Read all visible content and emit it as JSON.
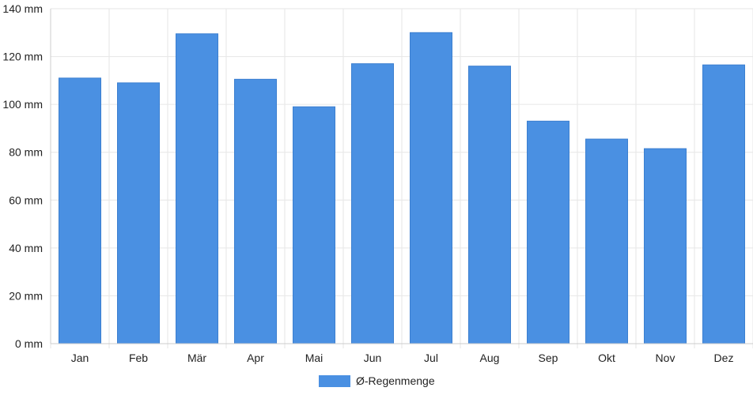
{
  "chart_data": {
    "type": "bar",
    "categories": [
      "Jan",
      "Feb",
      "Mär",
      "Apr",
      "Mai",
      "Jun",
      "Jul",
      "Aug",
      "Sep",
      "Okt",
      "Nov",
      "Dez"
    ],
    "series": [
      {
        "name": "Ø-Regenmenge",
        "values": [
          111,
          109,
          129.5,
          110.5,
          99,
          117,
          130,
          116,
          93,
          85.5,
          81.5,
          116.5
        ]
      }
    ],
    "ylim": [
      0,
      140
    ],
    "yticks": [
      0,
      20,
      40,
      60,
      80,
      100,
      120,
      140
    ],
    "ytick_labels": [
      "0 mm",
      "20 mm",
      "40 mm",
      "60 mm",
      "80 mm",
      "100 mm",
      "120 mm",
      "140 mm"
    ],
    "grid": true,
    "legend": "bottom-center",
    "colors": {
      "bar": "#4a90e2",
      "grid": "#e6e6e6",
      "axis": "#cccccc"
    }
  }
}
